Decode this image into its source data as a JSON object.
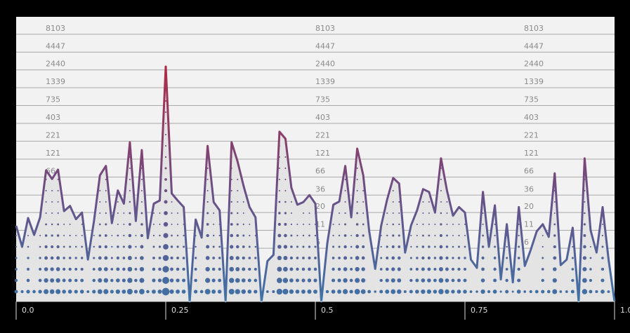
{
  "chart_data": {
    "type": "line",
    "log_scale": true,
    "grid": true,
    "color_low": "#3f72a6",
    "color_mid": "#6a4f86",
    "color_high": "#b02a45",
    "area_color": "#e4e4e4",
    "x": [
      0,
      0.01,
      0.02,
      0.03,
      0.04,
      0.05,
      0.06,
      0.07,
      0.08,
      0.09,
      0.1,
      0.11,
      0.12,
      0.13,
      0.14,
      0.15,
      0.16,
      0.17,
      0.18,
      0.19,
      0.2,
      0.21,
      0.22,
      0.23,
      0.24,
      0.25,
      0.26,
      0.27,
      0.28,
      0.29,
      0.3,
      0.31,
      0.32,
      0.33,
      0.34,
      0.35,
      0.36,
      0.37,
      0.38,
      0.39,
      0.4,
      0.41,
      0.42,
      0.43,
      0.44,
      0.45,
      0.46,
      0.47,
      0.48,
      0.49,
      0.5,
      0.51,
      0.52,
      0.53,
      0.54,
      0.55,
      0.56,
      0.57,
      0.58,
      0.59,
      0.6,
      0.61,
      0.62,
      0.63,
      0.64,
      0.65,
      0.66,
      0.67,
      0.68,
      0.69,
      0.7,
      0.71,
      0.72,
      0.73,
      0.74,
      0.75,
      0.76,
      0.77,
      0.78,
      0.79,
      0.8,
      0.81,
      0.82,
      0.83,
      0.84,
      0.85,
      0.86,
      0.87,
      0.88,
      0.89,
      0.9,
      0.91,
      0.92,
      0.93,
      0.94,
      0.95,
      0.96,
      0.97,
      0.98,
      0.99,
      1
    ],
    "values": [
      12.8,
      6.3,
      16.6,
      9.4,
      17,
      83,
      62,
      85,
      21,
      25,
      16,
      20,
      4.1,
      15,
      70,
      96,
      14,
      42,
      27,
      213,
      15,
      164,
      8.4,
      27,
      30,
      2730,
      38,
      30,
      24,
      1,
      15.8,
      8.6,
      189,
      28.5,
      21.5,
      1,
      213,
      112,
      49,
      24,
      17,
      1,
      3.9,
      4.8,
      304,
      240,
      46,
      26,
      28.5,
      36,
      27,
      1,
      7.1,
      26,
      29,
      96,
      17,
      172,
      70,
      10.6,
      3,
      12.8,
      31,
      64,
      53,
      5.2,
      13,
      21.5,
      44,
      40,
      20,
      124,
      42,
      18,
      24,
      20,
      4.1,
      3.1,
      40,
      6.3,
      25.5,
      2.1,
      13.5,
      1.9,
      24,
      3.3,
      5.7,
      10.6,
      13.5,
      8.8,
      75,
      3.4,
      4.1,
      12,
      1,
      124,
      11,
      5.2,
      24,
      4.1,
      1
    ],
    "xlim": [
      0,
      1
    ],
    "xticks": [
      {
        "value": 0,
        "label": "0.0"
      },
      0.25,
      0.5,
      0.75,
      {
        "value": 1,
        "label": "1.0"
      }
    ],
    "ylim": [
      1,
      14600
    ],
    "yticks": [
      8103,
      4447,
      2440,
      1339,
      735,
      403,
      221,
      121,
      66,
      36,
      20,
      11,
      6
    ]
  }
}
